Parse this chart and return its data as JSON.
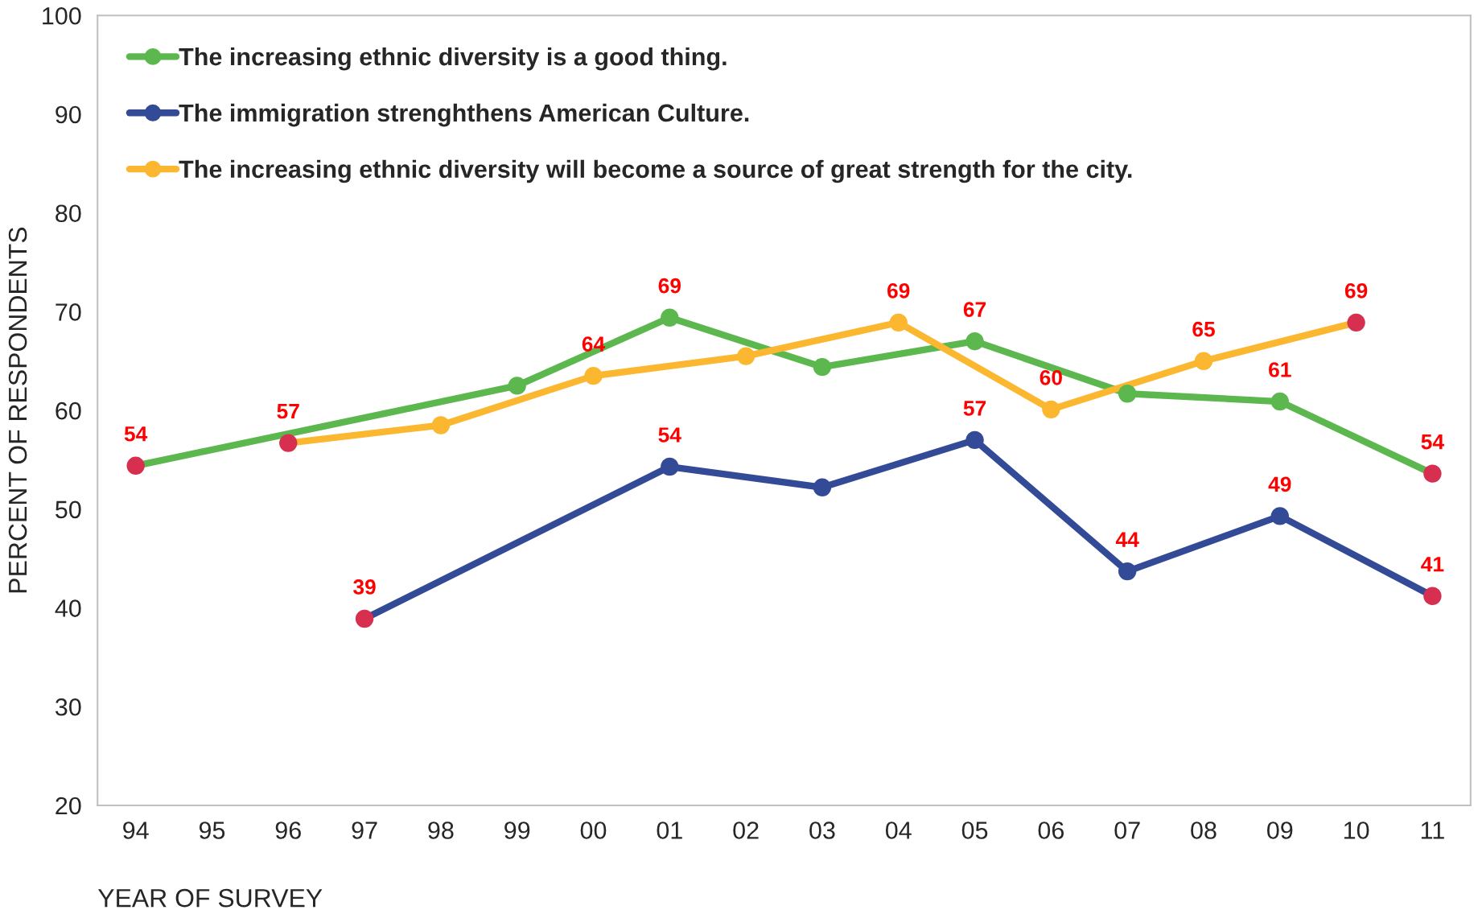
{
  "chart_data": {
    "type": "line",
    "xlabel": "YEAR OF SURVEY",
    "ylabel": "PERCENT OF RESPONDENTS",
    "categories": [
      "94",
      "95",
      "96",
      "97",
      "98",
      "99",
      "00",
      "01",
      "02",
      "03",
      "04",
      "05",
      "06",
      "07",
      "08",
      "09",
      "10",
      "11"
    ],
    "ylim": [
      20,
      100
    ],
    "yticks": [
      20,
      30,
      40,
      50,
      60,
      70,
      80,
      90,
      100
    ],
    "grid": false,
    "legend": "top left",
    "marker": "circle",
    "line_style": "solid",
    "series": [
      {
        "name": "The increasing ethnic diversity is a good thing.",
        "color": "#5cb84e",
        "values": [
          54.4,
          null,
          null,
          null,
          null,
          62.5,
          null,
          69.4,
          null,
          64.4,
          null,
          67.0,
          null,
          61.7,
          null,
          60.9,
          null,
          53.6
        ],
        "colors": [
          "#d62f4f",
          null,
          null,
          null,
          null,
          "#5cb84e",
          null,
          "#5cb84e",
          null,
          "#5cb84e",
          null,
          "#5cb84e",
          null,
          "#5cb84e",
          null,
          "#5cb84e",
          null,
          "#d62f4f"
        ],
        "value_labels": [
          "54",
          null,
          null,
          null,
          null,
          null,
          null,
          "69",
          null,
          null,
          null,
          "67",
          null,
          null,
          null,
          "61",
          null,
          "54"
        ]
      },
      {
        "name": "The immigration strenghthens American Culture.",
        "color": "#334a97",
        "values": [
          null,
          null,
          null,
          38.9,
          null,
          null,
          null,
          54.3,
          null,
          52.2,
          null,
          57.0,
          null,
          43.7,
          null,
          49.3,
          null,
          41.2
        ],
        "colors": [
          null,
          null,
          null,
          "#d62f4f",
          null,
          null,
          null,
          "#334a97",
          null,
          "#334a97",
          null,
          "#334a97",
          null,
          "#334a97",
          null,
          "#334a97",
          null,
          "#d62f4f"
        ],
        "value_labels": [
          null,
          null,
          null,
          "39",
          null,
          null,
          null,
          "54",
          null,
          null,
          null,
          "57",
          null,
          "44",
          null,
          "49",
          null,
          "41"
        ]
      },
      {
        "name": "The increasing ethnic diversity will become a source of great strength for the city.",
        "color": "#fbb730",
        "values": [
          null,
          null,
          56.7,
          null,
          58.5,
          null,
          63.5,
          null,
          65.5,
          null,
          68.9,
          null,
          60.1,
          null,
          65.0,
          null,
          68.9,
          null
        ],
        "colors": [
          null,
          null,
          "#d62f4f",
          null,
          "#fbb730",
          null,
          "#fbb730",
          null,
          "#fbb730",
          null,
          "#fbb730",
          null,
          "#fbb730",
          null,
          "#fbb730",
          null,
          "#d62f4f",
          null
        ],
        "value_labels": [
          null,
          null,
          "57",
          null,
          null,
          null,
          "64",
          null,
          null,
          null,
          "69",
          null,
          "60",
          null,
          "65",
          null,
          "69",
          null
        ]
      }
    ]
  }
}
